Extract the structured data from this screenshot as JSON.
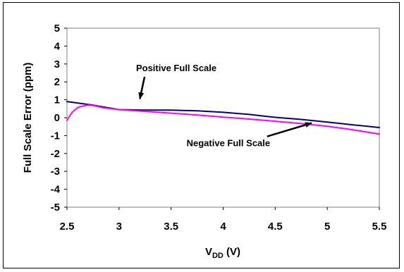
{
  "chart_data": {
    "type": "line",
    "xlabel_main": "V",
    "xlabel_sub": "DD",
    "xlabel_unit": " (V)",
    "ylabel": "Full Scale Error (ppm)",
    "xlim": [
      2.5,
      5.5
    ],
    "ylim": [
      -5,
      5
    ],
    "x_ticks": [
      "2.5",
      "3",
      "3.5",
      "4",
      "4.5",
      "5",
      "5.5"
    ],
    "y_ticks": [
      "5",
      "4",
      "3",
      "2",
      "1",
      "0",
      "-1",
      "-2",
      "-3",
      "-4",
      "-5"
    ],
    "grid": false,
    "series": [
      {
        "name": "Positive Full Scale",
        "color": "#000080",
        "x": [
          2.5,
          2.75,
          3.0,
          3.25,
          3.5,
          3.75,
          4.0,
          4.25,
          4.5,
          4.75,
          5.0,
          5.25,
          5.5
        ],
        "y": [
          0.9,
          0.7,
          0.45,
          0.42,
          0.42,
          0.38,
          0.3,
          0.18,
          0.02,
          -0.1,
          -0.25,
          -0.4,
          -0.55
        ]
      },
      {
        "name": "Negative Full Scale",
        "color": "#ff00ff",
        "x": [
          2.5,
          2.55,
          2.6,
          2.65,
          2.7,
          2.75,
          2.85,
          3.0,
          3.25,
          3.5,
          3.75,
          4.0,
          4.25,
          4.5,
          4.75,
          5.0,
          5.25,
          5.5
        ],
        "y": [
          -0.15,
          0.3,
          0.55,
          0.65,
          0.7,
          0.68,
          0.55,
          0.45,
          0.35,
          0.25,
          0.15,
          0.03,
          -0.08,
          -0.2,
          -0.33,
          -0.48,
          -0.68,
          -0.92
        ]
      }
    ],
    "annotations": [
      {
        "text": "Positive Full Scale",
        "target_series": 0,
        "target_x": 3.2,
        "target_y": 1.05,
        "label_x": 3.55,
        "label_y": 2.6
      },
      {
        "text": "Negative Full Scale",
        "target_series": 1,
        "target_x": 4.85,
        "target_y": -0.3,
        "label_x": 4.05,
        "label_y": -1.6
      }
    ]
  }
}
